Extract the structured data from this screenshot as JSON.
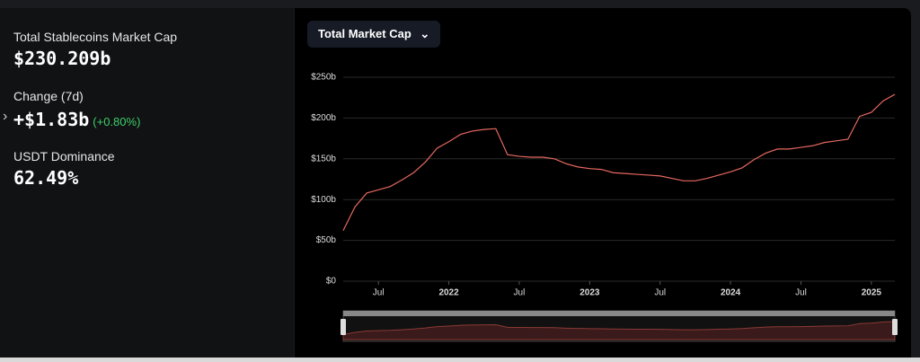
{
  "stats": [
    {
      "label": "Total Stablecoins Market Cap",
      "value": "$230.209b"
    },
    {
      "label": "Change (7d)",
      "value": "+$1.83b",
      "change": "(+0.80%)"
    },
    {
      "label": "USDT Dominance",
      "value": "62.49%"
    }
  ],
  "selector": "Total Market Cap",
  "chart_data": {
    "type": "line",
    "color": "#e5685f",
    "x": [
      "2021-04",
      "2021-05",
      "2021-06",
      "2021-07",
      "2021-08",
      "2021-09",
      "2021-10",
      "2021-11",
      "2021-12",
      "2022-01",
      "2022-02",
      "2022-03",
      "2022-04",
      "2022-05",
      "2022-06",
      "2022-07",
      "2022-08",
      "2022-09",
      "2022-10",
      "2022-11",
      "2022-12",
      "2023-01",
      "2023-02",
      "2023-03",
      "2023-04",
      "2023-05",
      "2023-06",
      "2023-07",
      "2023-08",
      "2023-09",
      "2023-10",
      "2023-11",
      "2023-12",
      "2024-01",
      "2024-02",
      "2024-03",
      "2024-04",
      "2024-05",
      "2024-06",
      "2024-07",
      "2024-08",
      "2024-09",
      "2024-10",
      "2024-11",
      "2024-12",
      "2025-01",
      "2025-02",
      "2025-03"
    ],
    "values": [
      62,
      91,
      108,
      112,
      116,
      124,
      133,
      146,
      163,
      171,
      180,
      184,
      186,
      187,
      155,
      153,
      152,
      152,
      150,
      144,
      140,
      138,
      137,
      133,
      132,
      131,
      130,
      129,
      126,
      123,
      123,
      126,
      130,
      134,
      139,
      149,
      157,
      162,
      162,
      164,
      166,
      170,
      172,
      174,
      202,
      207,
      221,
      229
    ],
    "xlim": [
      "2021-04",
      "2025-03"
    ],
    "xticks": [
      {
        "value": "2021-07",
        "label": "Jul"
      },
      {
        "value": "2022-01",
        "label": "2022"
      },
      {
        "value": "2022-07",
        "label": "Jul"
      },
      {
        "value": "2023-01",
        "label": "2023"
      },
      {
        "value": "2023-07",
        "label": "Jul"
      },
      {
        "value": "2024-01",
        "label": "2024"
      },
      {
        "value": "2024-07",
        "label": "Jul"
      },
      {
        "value": "2025-01",
        "label": "2025"
      }
    ],
    "ylim": [
      0,
      250
    ],
    "yticks": [
      {
        "value": 0,
        "label": "$0"
      },
      {
        "value": 50,
        "label": "$50b"
      },
      {
        "value": 100,
        "label": "$100b"
      },
      {
        "value": 150,
        "label": "$150b"
      },
      {
        "value": 200,
        "label": "$200b"
      },
      {
        "value": 250,
        "label": "$250b"
      }
    ],
    "grid": true
  }
}
